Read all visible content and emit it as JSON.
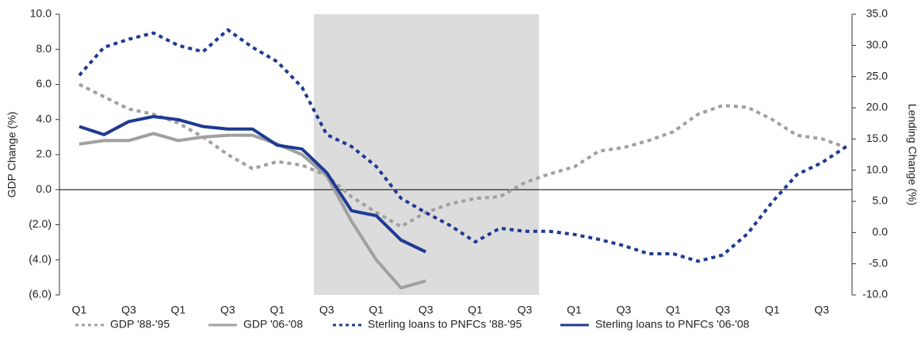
{
  "chart_data": {
    "type": "line",
    "y_label": "GDP Change (%)",
    "y2_label": "Lending Change (%)",
    "categories": [
      "Q1",
      null,
      "Q3",
      null,
      "Q1",
      null,
      "Q3",
      null,
      "Q1",
      null,
      "Q3",
      null,
      "Q1",
      null,
      "Q3",
      null,
      "Q1",
      null,
      "Q3",
      null,
      "Q1",
      null,
      "Q3",
      null,
      "Q1",
      null,
      "Q3",
      null,
      "Q1",
      null,
      "Q3",
      null
    ],
    "ylim": [
      -6,
      10
    ],
    "yticks": [
      {
        "value": 10,
        "label": "10.0"
      },
      {
        "value": 8,
        "label": "8.0"
      },
      {
        "value": 6,
        "label": "6.0"
      },
      {
        "value": 4,
        "label": "4.0"
      },
      {
        "value": 2,
        "label": "2.0"
      },
      {
        "value": 0,
        "label": "0.0"
      },
      {
        "value": -2,
        "label": "(2.0)"
      },
      {
        "value": -4,
        "label": "(4.0)"
      },
      {
        "value": -6,
        "label": "(6.0)"
      }
    ],
    "y2lim": [
      -10,
      35
    ],
    "y2ticks": [
      {
        "value": 35,
        "label": "35.0"
      },
      {
        "value": 30,
        "label": "30.0"
      },
      {
        "value": 25,
        "label": "25.0"
      },
      {
        "value": 20,
        "label": "20.0"
      },
      {
        "value": 15,
        "label": "15.0"
      },
      {
        "value": 10,
        "label": "10.0"
      },
      {
        "value": 5,
        "label": "5.0"
      },
      {
        "value": 0,
        "label": "0.0"
      },
      {
        "value": -5,
        "label": "-5.0"
      },
      {
        "value": -10,
        "label": "-10.0"
      }
    ],
    "legend": "bottom",
    "series": [
      {
        "name": "GDP '88-'95",
        "color": "#a0a0a0",
        "style": "dotted",
        "axis": "y",
        "values": [
          6.0,
          5.3,
          4.6,
          4.3,
          3.8,
          3.0,
          2.0,
          1.2,
          1.6,
          1.4,
          0.8,
          -0.4,
          -1.3,
          -2.1,
          -1.3,
          -0.8,
          -0.5,
          -0.4,
          0.4,
          0.9,
          1.3,
          2.2,
          2.4,
          2.8,
          3.3,
          4.3,
          4.8,
          4.7,
          4.0,
          3.1,
          2.9,
          2.4
        ]
      },
      {
        "name": "GDP '06-'08",
        "color": "#a0a0a0",
        "style": "solid",
        "axis": "y",
        "values": [
          2.6,
          2.8,
          2.8,
          3.2,
          2.8,
          3.0,
          3.1,
          3.1,
          2.6,
          2.0,
          0.8,
          -1.8,
          -4.0,
          -5.6,
          -5.2,
          null,
          null,
          null,
          null,
          null,
          null,
          null,
          null,
          null,
          null,
          null,
          null,
          null,
          null,
          null,
          null,
          null
        ]
      },
      {
        "name": "Sterling loans to PNFCs '88-'95",
        "color": "#1f3a93",
        "style": "dotted",
        "axis": "y2",
        "values": [
          25.2,
          29.7,
          31.0,
          32.0,
          30.0,
          29.0,
          32.5,
          29.7,
          27.4,
          23.3,
          15.7,
          13.8,
          10.6,
          5.5,
          3.2,
          1.1,
          -1.5,
          0.7,
          0.2,
          0.2,
          -0.3,
          -1.1,
          -2.1,
          -3.4,
          -3.4,
          -4.6,
          -3.6,
          -0.2,
          4.9,
          9.3,
          11.2,
          13.8
        ]
      },
      {
        "name": "Sterling loans to PNFCs '06-'08",
        "color": "#1f3a93",
        "style": "solid",
        "axis": "y2",
        "values": [
          17.0,
          15.7,
          17.8,
          18.6,
          18.1,
          17.0,
          16.6,
          16.6,
          14.0,
          13.4,
          9.6,
          3.5,
          2.7,
          -1.2,
          -3.1,
          null,
          null,
          null,
          null,
          null,
          null,
          null,
          null,
          null,
          null,
          null,
          null,
          null,
          null,
          null,
          null,
          null
        ]
      }
    ]
  }
}
